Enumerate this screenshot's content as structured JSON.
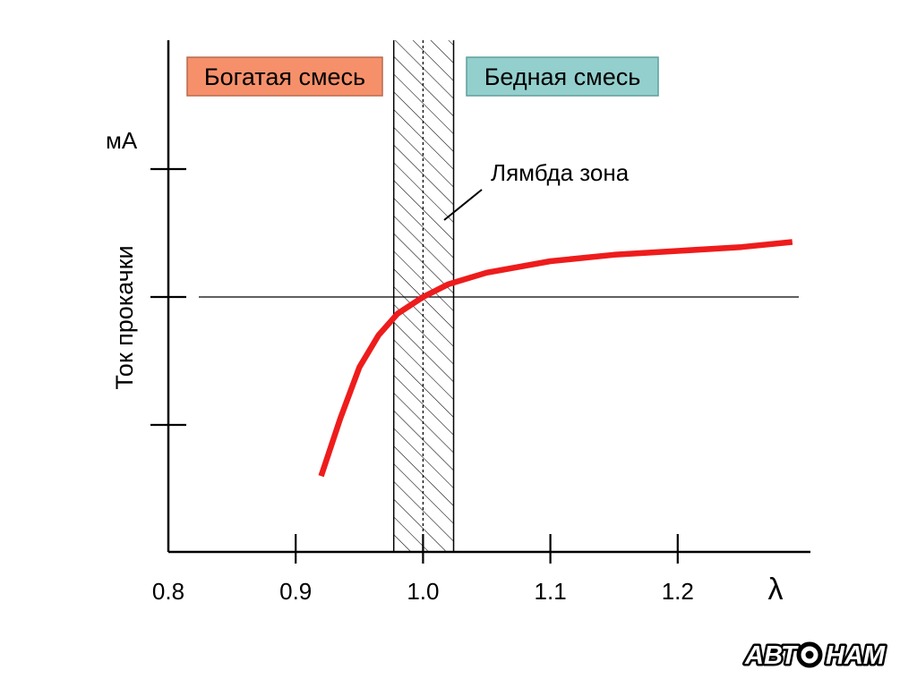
{
  "chart_data": {
    "type": "line",
    "title": "",
    "xlabel": "λ",
    "ylabel": "Ток прокачки",
    "yunit": "мА",
    "xlim": [
      0.8,
      1.3
    ],
    "x_ticks": [
      0.8,
      0.9,
      1.0,
      1.1,
      1.2
    ],
    "x_tick_labels": [
      "0.8",
      "0.9",
      "1.0",
      "1.1",
      "1.2"
    ],
    "y_tick_count": 3,
    "reference_line": "zero current",
    "lambda_zone": {
      "label": "Лямбда зона",
      "from": 0.977,
      "to": 1.024,
      "center": 1.0
    },
    "regions": [
      {
        "label": "Богатая смесь",
        "color": "#f6906b",
        "border": "#b86a4d"
      },
      {
        "label": "Бедная смесь",
        "color": "#93cfcd",
        "border": "#5e9e9c"
      }
    ],
    "series": [
      {
        "color": "#ee1c1c",
        "x": [
          0.92,
          0.935,
          0.95,
          0.965,
          0.98,
          1.0,
          1.02,
          1.05,
          1.1,
          1.15,
          1.2,
          1.25,
          1.29
        ],
        "y": [
          -1.4,
          -0.95,
          -0.55,
          -0.3,
          -0.13,
          0.0,
          0.1,
          0.19,
          0.28,
          0.33,
          0.36,
          0.39,
          0.43
        ]
      }
    ]
  },
  "logo": {
    "text": "АВТО НАМ"
  }
}
